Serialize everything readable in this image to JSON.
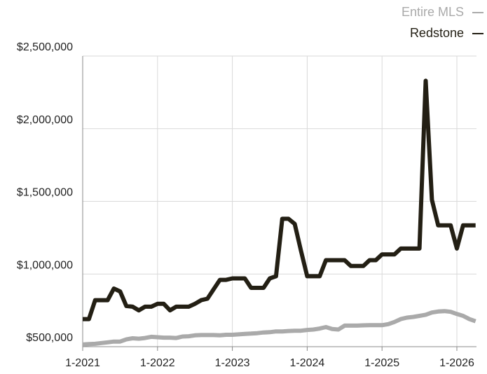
{
  "chart_data": {
    "type": "line",
    "categories": [
      "1-2021",
      null,
      null,
      null,
      null,
      null,
      null,
      null,
      null,
      null,
      null,
      null,
      "1-2022",
      null,
      null,
      null,
      null,
      null,
      null,
      null,
      null,
      null,
      null,
      null,
      "1-2023",
      null,
      null,
      null,
      null,
      null,
      null,
      null,
      null,
      null,
      null,
      null,
      "1-2024",
      null,
      null,
      null,
      null,
      null,
      null,
      null,
      null,
      null,
      null,
      null,
      "1-2025",
      null,
      null,
      null,
      null,
      null,
      null,
      null,
      null,
      null,
      null,
      null,
      "1-2026",
      null,
      null,
      null
    ],
    "series": [
      {
        "name": "Entire MLS",
        "color": "#aaaaaa",
        "values": [
          515000,
          518000,
          520000,
          525000,
          530000,
          535000,
          535000,
          550000,
          558000,
          555000,
          560000,
          568000,
          565000,
          562000,
          562000,
          560000,
          570000,
          572000,
          578000,
          580000,
          580000,
          580000,
          578000,
          582000,
          582000,
          585000,
          588000,
          590000,
          593000,
          598000,
          600000,
          605000,
          605000,
          608000,
          610000,
          610000,
          615000,
          618000,
          625000,
          635000,
          622000,
          618000,
          645000,
          645000,
          645000,
          647000,
          648000,
          648000,
          648000,
          655000,
          670000,
          690000,
          700000,
          705000,
          712000,
          720000,
          735000,
          742000,
          745000,
          740000,
          725000,
          712000,
          690000,
          675000
        ]
      },
      {
        "name": "Redstone",
        "color": "#231f14",
        "values": [
          690000,
          690000,
          820000,
          820000,
          820000,
          900000,
          880000,
          780000,
          775000,
          750000,
          775000,
          775000,
          795000,
          795000,
          750000,
          775000,
          775000,
          775000,
          795000,
          820000,
          830000,
          895000,
          960000,
          960000,
          970000,
          970000,
          970000,
          905000,
          905000,
          905000,
          970000,
          985000,
          1380000,
          1380000,
          1345000,
          1160000,
          985000,
          985000,
          985000,
          1095000,
          1095000,
          1095000,
          1095000,
          1055000,
          1055000,
          1055000,
          1095000,
          1095000,
          1135000,
          1135000,
          1135000,
          1175000,
          1175000,
          1175000,
          1175000,
          2330000,
          1510000,
          1335000,
          1335000,
          1335000,
          1175000,
          1335000,
          1335000,
          1335000
        ]
      }
    ],
    "ylim": [
      500000,
      2500000
    ],
    "yticks": [
      {
        "value": 500000,
        "label": "$500,000"
      },
      {
        "value": 1000000,
        "label": "$1,000,000"
      },
      {
        "value": 1500000,
        "label": "$1,500,000"
      },
      {
        "value": 2000000,
        "label": "$2,000,000"
      },
      {
        "value": 2500000,
        "label": "$2,500,000"
      }
    ],
    "grid": true
  }
}
